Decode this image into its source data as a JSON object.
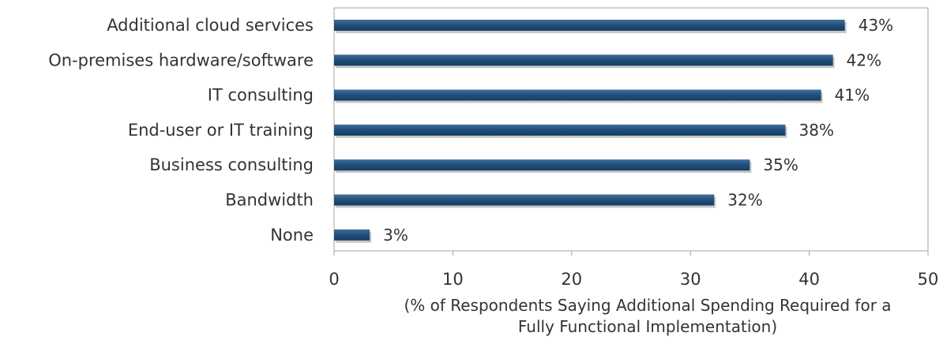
{
  "chart_data": {
    "type": "bar",
    "orientation": "horizontal",
    "categories": [
      "Additional cloud services",
      "On-premises hardware/software",
      "IT consulting",
      "End-user or IT training",
      "Business consulting",
      "Bandwidth",
      "None"
    ],
    "values": [
      43,
      42,
      41,
      38,
      35,
      32,
      3
    ],
    "value_labels": [
      "43%",
      "42%",
      "41%",
      "38%",
      "35%",
      "32%",
      "3%"
    ],
    "xlim": [
      0,
      50
    ],
    "xticks": [
      0,
      10,
      20,
      30,
      40,
      50
    ],
    "xlabel_lines": [
      "(% of Respondents Saying Additional Spending Required for a",
      "Fully Functional Implementation)"
    ],
    "bar_color": "#1f4e79",
    "grid": false,
    "legend": "none"
  }
}
